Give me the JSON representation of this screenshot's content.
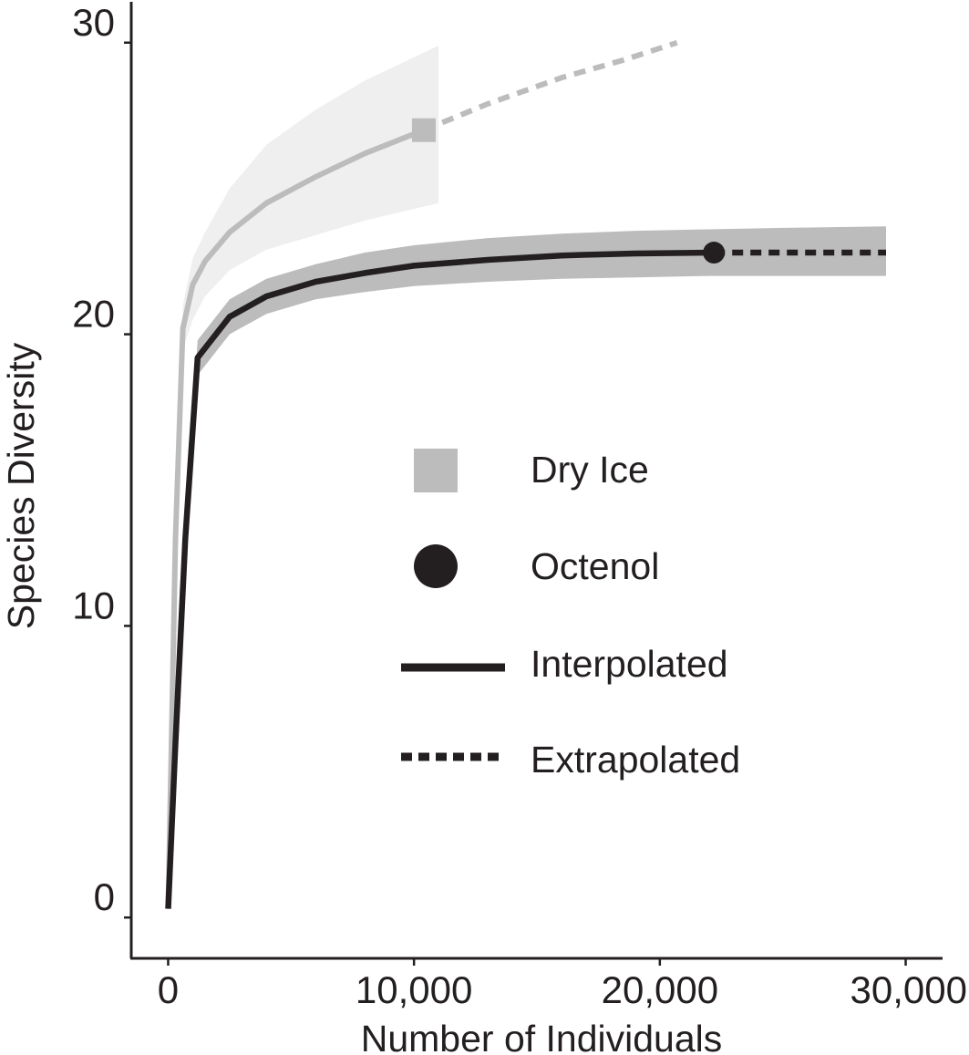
{
  "chart_data": {
    "type": "line",
    "title": "",
    "xlabel": "Number of Individuals",
    "ylabel": "Species Diversity",
    "xlim": [
      -1500,
      31500
    ],
    "ylim": [
      -1.4,
      31.4
    ],
    "x_ticks": [
      {
        "value": 0,
        "label": "0"
      },
      {
        "value": 10000,
        "label": "10,000"
      },
      {
        "value": 20000,
        "label": "20,000"
      },
      {
        "value": 30000,
        "label": "30,000"
      }
    ],
    "y_ticks": [
      {
        "value": 0,
        "label": "0"
      },
      {
        "value": 10,
        "label": "10"
      },
      {
        "value": 20,
        "label": "20"
      },
      {
        "value": 30,
        "label": "30"
      }
    ],
    "grid": false,
    "legend_position": "center-right",
    "legend": {
      "items": [
        {
          "label": "Dry Ice",
          "marker": "square",
          "color": "#bcbcbc"
        },
        {
          "label": "Octenol",
          "marker": "circle",
          "color": "#231f20"
        },
        {
          "label": "Interpolated",
          "line": "solid",
          "color": "#231f20"
        },
        {
          "label": "Extrapolated",
          "line": "dashed",
          "color": "#231f20"
        }
      ]
    },
    "series": [
      {
        "color": "#bcbcbc",
        "band_color": "#efefef",
        "observed": {
          "x": 10400,
          "y": 27.0,
          "marker": "square"
        },
        "interpolated": {
          "x": [
            0,
            300,
            600,
            1000,
            1500,
            2500,
            4000,
            6000,
            8000,
            10400
          ],
          "y": [
            0.3,
            13.0,
            20.2,
            21.7,
            22.5,
            23.5,
            24.5,
            25.4,
            26.2,
            27.0
          ]
        },
        "extrapolated": {
          "x": [
            10400,
            13000,
            16000,
            18500,
            20700
          ],
          "y": [
            27.0,
            27.9,
            28.8,
            29.4,
            30.0
          ]
        },
        "band": {
          "x": [
            0,
            300,
            600,
            1000,
            1500,
            2500,
            4000,
            6000,
            8000,
            10000,
            11000
          ],
          "upper": [
            0.3,
            13.5,
            21.0,
            22.6,
            23.5,
            25.0,
            26.5,
            27.7,
            28.7,
            29.5,
            29.9
          ],
          "lower": [
            0.3,
            12.5,
            19.5,
            20.5,
            21.3,
            22.2,
            22.9,
            23.4,
            23.9,
            24.3,
            24.5
          ]
        }
      },
      {
        "color": "#231f20",
        "band_color": "#bcbcbc",
        "observed": {
          "x": 22200,
          "y": 22.8,
          "marker": "circle"
        },
        "interpolated": {
          "x": [
            0,
            300,
            700,
            1200,
            2500,
            4000,
            6000,
            8000,
            10000,
            13000,
            16000,
            19000,
            22200
          ],
          "y": [
            0.3,
            6.0,
            13.0,
            19.2,
            20.6,
            21.3,
            21.8,
            22.1,
            22.35,
            22.55,
            22.7,
            22.77,
            22.8
          ]
        },
        "extrapolated": {
          "x": [
            22200,
            29200
          ],
          "y": [
            22.8,
            22.8
          ]
        },
        "band": {
          "x": [
            0,
            300,
            700,
            1200,
            2500,
            4000,
            6000,
            8000,
            10000,
            13000,
            16000,
            19000,
            22000,
            25000,
            29200
          ],
          "upper": [
            0.4,
            6.5,
            13.6,
            19.8,
            21.2,
            21.9,
            22.4,
            22.8,
            23.05,
            23.3,
            23.45,
            23.55,
            23.6,
            23.65,
            23.7
          ],
          "lower": [
            0.2,
            5.5,
            12.4,
            18.6,
            20.0,
            20.7,
            21.2,
            21.45,
            21.65,
            21.8,
            21.9,
            21.95,
            22.0,
            22.0,
            22.0
          ]
        }
      }
    ]
  }
}
